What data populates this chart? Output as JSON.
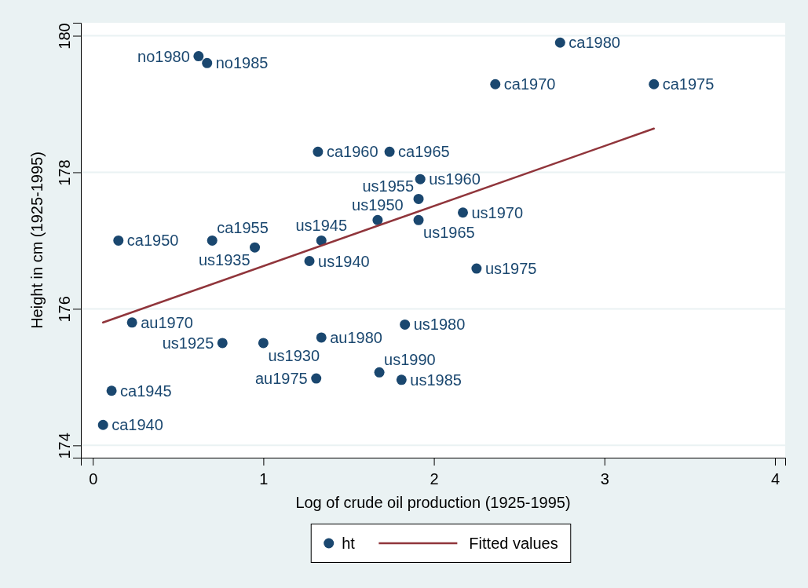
{
  "chart_data": {
    "type": "scatter",
    "xlabel": "Log of crude oil production (1925-1995)",
    "ylabel": "Height in cm (1925-1995)",
    "xlim": [
      -0.07,
      4.06
    ],
    "ylim": [
      173.82,
      180.19
    ],
    "xticks": [
      0,
      1,
      2,
      3,
      4
    ],
    "yticks": [
      174,
      176,
      178,
      180
    ],
    "grid": "y",
    "legend": "bottom",
    "series": [
      {
        "name": "ht",
        "color": "#1a476f",
        "marker": "circle",
        "x": [
          0.23,
          1.31,
          1.34,
          0.06,
          0.11,
          0.15,
          0.7,
          1.32,
          1.74,
          2.36,
          3.29,
          2.74,
          0.62,
          0.67,
          0.76,
          1.0,
          0.95,
          1.27,
          1.34,
          1.67,
          1.91,
          1.92,
          1.91,
          2.17,
          2.25,
          1.83,
          1.81,
          1.68
        ],
        "values": [
          175.8,
          174.98,
          175.58,
          174.3,
          174.8,
          177.0,
          177.0,
          178.3,
          178.3,
          179.29,
          179.29,
          179.9,
          179.7,
          179.6,
          175.5,
          175.5,
          176.9,
          176.7,
          177.0,
          177.3,
          177.61,
          177.9,
          177.3,
          177.41,
          176.59,
          175.77,
          174.96,
          175.07
        ],
        "value_labels": [
          "au1970",
          "au1975",
          "au1980",
          "ca1940",
          "ca1945",
          "ca1950",
          "ca1955",
          "ca1960",
          "ca1965",
          "ca1970",
          "ca1975",
          "ca1980",
          "no1980",
          "no1985",
          "us1925",
          "us1930",
          "us1935",
          "us1940",
          "us1945",
          "us1950",
          "us1955",
          "us1960",
          "us1965",
          "us1970",
          "us1975",
          "us1980",
          "us1985",
          "us1990"
        ]
      },
      {
        "name": "Fitted values",
        "type": "line",
        "color": "#90353b",
        "x": [
          0.06,
          3.29
        ],
        "values": [
          175.8,
          178.64
        ]
      }
    ]
  }
}
